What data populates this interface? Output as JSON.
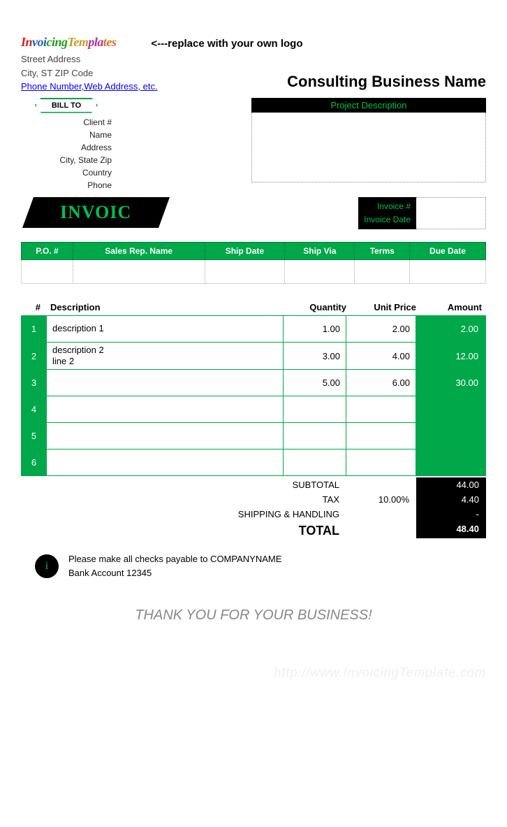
{
  "logo": {
    "text": "InvoicingTemplates"
  },
  "logo_note": "<---replace with your own logo",
  "company": {
    "street": "Street Address",
    "city_line": "City, ST  ZIP Code",
    "contact": "Phone Number,Web Address, etc.",
    "business_name": "Consulting Business Name"
  },
  "billto": {
    "tag": "BILL TO",
    "labels": {
      "client": "Client #",
      "name": "Name",
      "address": "Address",
      "csz": "City, State Zip",
      "country": "Country",
      "phone": "Phone"
    }
  },
  "project": {
    "header": "Project Description"
  },
  "invoice_banner": "INVOIC",
  "invoice_meta": {
    "num_label": "Invoice #",
    "date_label": "Invoice Date"
  },
  "po_headers": [
    "P.O. #",
    "Sales Rep. Name",
    "Ship Date",
    "Ship Via",
    "Terms",
    "Due Date"
  ],
  "items": {
    "headers": {
      "num": "#",
      "desc": "Description",
      "qty": "Quantity",
      "price": "Unit Price",
      "amt": "Amount"
    },
    "rows": [
      {
        "n": "1",
        "desc": "description 1",
        "qty": "1.00",
        "price": "2.00",
        "amt": "2.00"
      },
      {
        "n": "2",
        "desc": "description 2\nline 2",
        "qty": "3.00",
        "price": "4.00",
        "amt": "12.00"
      },
      {
        "n": "3",
        "desc": "",
        "qty": "5.00",
        "price": "6.00",
        "amt": "30.00"
      },
      {
        "n": "4",
        "desc": "",
        "qty": "",
        "price": "",
        "amt": ""
      },
      {
        "n": "5",
        "desc": "",
        "qty": "",
        "price": "",
        "amt": ""
      },
      {
        "n": "6",
        "desc": "",
        "qty": "",
        "price": "",
        "amt": ""
      }
    ]
  },
  "totals": {
    "subtotal_label": "SUBTOTAL",
    "subtotal": "44.00",
    "tax_label": "TAX",
    "tax_rate": "10.00%",
    "tax": "4.40",
    "ship_label": "SHIPPING & HANDLING",
    "ship": "-",
    "total_label": "TOTAL",
    "total": "48.40"
  },
  "info": {
    "line1": "Please make all checks payable to COMPANYNAME",
    "line2": "Bank Account 12345"
  },
  "thanks": "THANK YOU FOR YOUR BUSINESS!",
  "watermark": "http://www.InvoicingTemplate.com",
  "colors": {
    "accent": "#00a84a",
    "accent_text": "#00c050",
    "black": "#000000"
  }
}
